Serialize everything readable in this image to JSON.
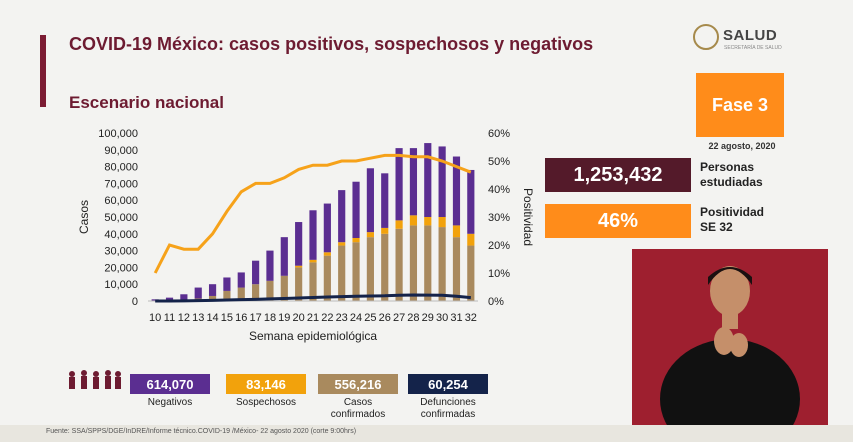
{
  "header": {
    "title": "COVID-19 México: casos positivos, sospechosos y negativos",
    "subtitle": "Escenario nacional"
  },
  "logo": {
    "text": "SALUD",
    "sub": "SECRETARÍA DE SALUD"
  },
  "phase": {
    "label": "Fase 3",
    "date": "22 agosto, 2020"
  },
  "stats": {
    "studied_value": "1,253,432",
    "studied_label_1": "Personas",
    "studied_label_2": "estudiadas",
    "positivity_value": "46%",
    "positivity_label_1": "Positividad",
    "positivity_label_2": "SE 32"
  },
  "legend": [
    {
      "value": "614,070",
      "label_1": "Negativos",
      "label_2": "",
      "color": "#5b2e91"
    },
    {
      "value": "83,146",
      "label_1": "Sospechosos",
      "label_2": "",
      "color": "#f2a20c"
    },
    {
      "value": "556,216",
      "label_1": "Casos",
      "label_2": "confirmados",
      "color": "#a98a5e"
    },
    {
      "value": "60,254",
      "label_1": "Defunciones",
      "label_2": "confirmadas",
      "color": "#14234a"
    }
  ],
  "footer": {
    "source": "Fuente: SSA/SPPS/DGE/InDRE/Informe técnico.COVID-19 /México- 22 agosto 2020 (corte 9:00hrs)"
  },
  "chart_data": {
    "type": "bar",
    "stacked": true,
    "categories": [
      "10",
      "11",
      "12",
      "13",
      "14",
      "15",
      "16",
      "17",
      "18",
      "19",
      "20",
      "21",
      "22",
      "23",
      "24",
      "25",
      "26",
      "27",
      "28",
      "29",
      "30",
      "31",
      "32"
    ],
    "series": [
      {
        "name": "Casos confirmados",
        "values": [
          0,
          0,
          500,
          1500,
          3000,
          6000,
          8000,
          10000,
          12000,
          15000,
          20000,
          23000,
          27000,
          33000,
          35000,
          38000,
          40000,
          43000,
          45000,
          45000,
          44000,
          38000,
          33000
        ]
      },
      {
        "name": "Sospechosos",
        "values": [
          0,
          0,
          0,
          0,
          0,
          0,
          0,
          0,
          0,
          0,
          1000,
          1500,
          2000,
          2000,
          2500,
          3000,
          3500,
          5000,
          6000,
          5000,
          6000,
          7000,
          7000
        ]
      },
      {
        "name": "Negativos",
        "values": [
          1000,
          2000,
          4000,
          8000,
          10000,
          14000,
          17000,
          24000,
          30000,
          38000,
          47000,
          54000,
          58000,
          66000,
          71000,
          79000,
          76000,
          91000,
          91000,
          94000,
          92000,
          86000,
          78000
        ]
      },
      {
        "name": "Defunciones confirmadas",
        "values": [
          0,
          0,
          100,
          200,
          400,
          600,
          800,
          1000,
          1300,
          1500,
          1800,
          2100,
          2400,
          2600,
          2800,
          3000,
          3100,
          3400,
          3600,
          3500,
          3400,
          2800,
          2000
        ]
      }
    ],
    "positividad": [
      10,
      20,
      18.5,
      18.5,
      24,
      32,
      39,
      42,
      42,
      44,
      47,
      48.5,
      48.5,
      50,
      50,
      51,
      52,
      52,
      51.5,
      51.5,
      50,
      48,
      46
    ],
    "xlabel": "Semana epidemiológica",
    "ylabel": "Casos",
    "y2label": "Positividad",
    "ylim": [
      0,
      100000
    ],
    "y2lim": [
      0,
      60
    ],
    "yticks": [
      "0",
      "10,000",
      "20,000",
      "30,000",
      "40,000",
      "50,000",
      "60,000",
      "70,000",
      "80,000",
      "90,000",
      "100,000"
    ],
    "y2ticks": [
      "0%",
      "10%",
      "20%",
      "30%",
      "40%",
      "50%",
      "60%"
    ],
    "colors": {
      "confirmados": "#a98a5e",
      "sospechosos": "#f2a20c",
      "negativos": "#5b2e91",
      "defunciones": "#14234a",
      "positividad": "#f6a21a"
    }
  }
}
